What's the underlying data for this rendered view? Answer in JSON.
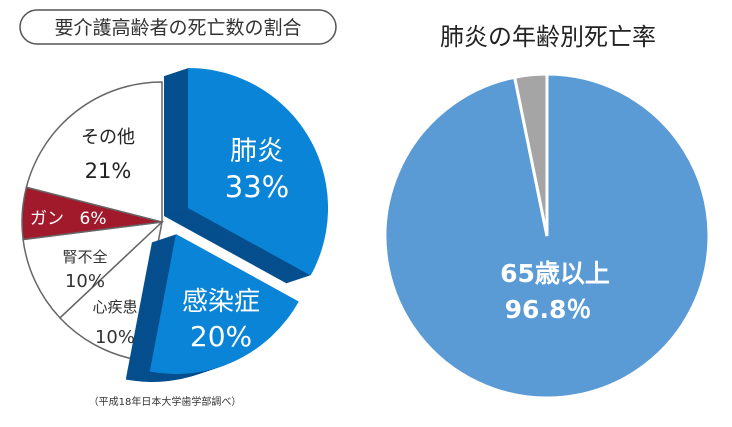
{
  "chart_data": [
    {
      "type": "pie",
      "title": "要介護高齢者の死亡数の割合",
      "source_note": "（平成18年日本大学歯学部調べ）",
      "start": "12 o'clock, clockwise",
      "exploded": [
        "肺炎",
        "感染症"
      ],
      "slices": [
        {
          "label": "肺炎",
          "value": 33,
          "value_label": "33%",
          "color": "#0a84d6",
          "side_color": "#064f8e",
          "text_color": "#ffffff"
        },
        {
          "label": "感染症",
          "value": 20,
          "value_label": "20%",
          "color": "#0a84d6",
          "side_color": "#064f8e",
          "text_color": "#ffffff"
        },
        {
          "label": "心疾患",
          "value": 10,
          "value_label": "10%",
          "color": "#ffffff",
          "text_color": "#333333"
        },
        {
          "label": "腎不全",
          "value": 10,
          "value_label": "10%",
          "color": "#ffffff",
          "text_color": "#333333"
        },
        {
          "label": "ガン",
          "value": 6,
          "value_label": "6%",
          "color": "#a01a2c",
          "text_color": "#ffffff"
        },
        {
          "label": "その他",
          "value": 21,
          "value_label": "21%",
          "color": "#ffffff",
          "text_color": "#222222"
        }
      ]
    },
    {
      "type": "pie",
      "title": "肺炎の年齢別死亡率",
      "start": "12 o'clock, clockwise",
      "slices": [
        {
          "label": "65歳以上",
          "value": 96.8,
          "value_label": "96.8％",
          "color": "#5b9bd5"
        },
        {
          "label": "",
          "value": 3.2,
          "color": "#a5a5a5"
        }
      ]
    }
  ]
}
